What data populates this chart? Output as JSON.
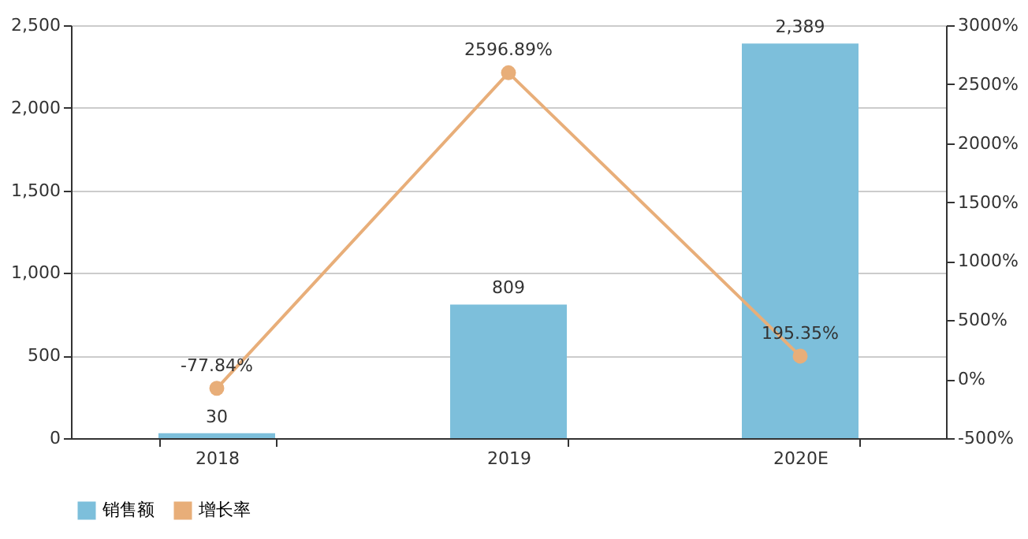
{
  "chart_data": {
    "type": "bar",
    "categories": [
      "2018",
      "2019",
      "2020E"
    ],
    "series": [
      {
        "name": "销售额",
        "color": "#7dbfdb",
        "values": [
          30,
          809,
          2389
        ],
        "value_labels": [
          "30",
          "809",
          "2,389"
        ]
      },
      {
        "name": "增长率",
        "type": "line",
        "axis": "y2",
        "color": "#e8ae79",
        "values": [
          -77.84,
          2596.89,
          195.35
        ],
        "value_labels": [
          "-77.84%",
          "2596.89%",
          "195.35%"
        ]
      }
    ],
    "ylim": [
      0,
      2500
    ],
    "yticks": [
      0,
      500,
      {
        "value": 1000,
        "label": "1,000"
      },
      {
        "value": 1500,
        "label": "1,500"
      },
      {
        "value": 2000,
        "label": "2,000"
      },
      {
        "value": 2500,
        "label": "2,500"
      }
    ],
    "y2lim": [
      -500,
      3000
    ],
    "y2ticks": [
      {
        "value": -500,
        "label": "-500%"
      },
      {
        "value": 0,
        "label": "0%"
      },
      {
        "value": 500,
        "label": "500%"
      },
      {
        "value": 1000,
        "label": "1000%"
      },
      {
        "value": 1500,
        "label": "1500%"
      },
      {
        "value": 2000,
        "label": "2000%"
      },
      {
        "value": 2500,
        "label": "2500%"
      },
      {
        "value": 3000,
        "label": "3000%"
      }
    ],
    "grid": "y",
    "legend": "bottom",
    "marker": "circle"
  }
}
